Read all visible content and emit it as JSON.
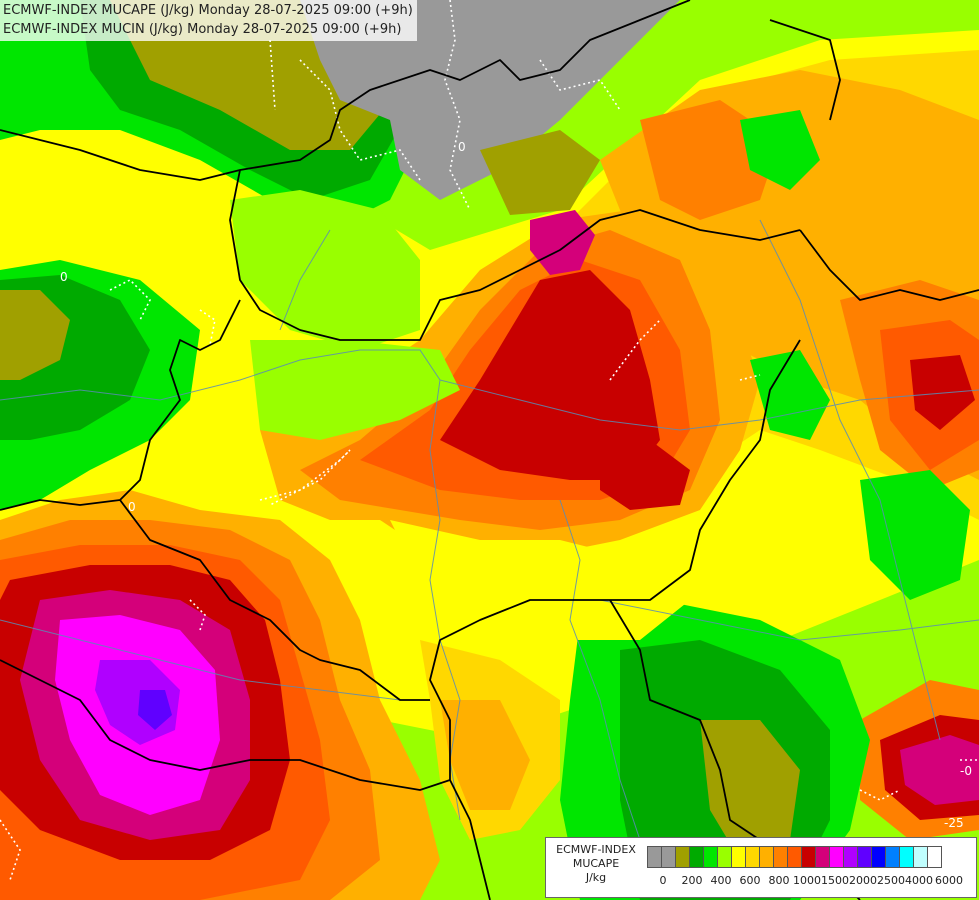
{
  "titles": {
    "line1": "ECMWF-INDEX MUCAPE (J/kg) Monday 28-07-2025 09:00 (+9h)",
    "line2": "ECMWF-INDEX MUCIN (J/kg) Monday 28-07-2025 09:00 (+9h)"
  },
  "legend": {
    "line1": "ECMWF-INDEX",
    "line2": "MUCAPE",
    "unit": "J/kg",
    "colors": [
      "#999999",
      "#999999",
      "#a0a000",
      "#00aa00",
      "#00e600",
      "#99ff00",
      "#ffff00",
      "#ffd800",
      "#ffb000",
      "#ff8000",
      "#ff5a00",
      "#c80000",
      "#d4007a",
      "#ff00ff",
      "#b000ff",
      "#6000ff",
      "#0000ff",
      "#0080ff",
      "#00ffff",
      "#c0ffff",
      "#ffffff"
    ],
    "ticks": [
      "0",
      "200",
      "400",
      "600",
      "800",
      "1000",
      "1500",
      "2000",
      "2500",
      "4000",
      "6000"
    ]
  },
  "contour_labels": [
    "0",
    "0",
    "-0",
    "-25",
    "0"
  ],
  "colors": {
    "light_green": "#99ff00",
    "green": "#00e600",
    "dark_green": "#00aa00",
    "olive": "#a0a000",
    "grey": "#999999",
    "yellow": "#ffff00",
    "gold": "#ffd800",
    "orange": "#ffb000",
    "dark_orange": "#ff8000",
    "red_orange": "#ff5a00",
    "dark_red": "#c80000",
    "magenta_dark": "#d4007a",
    "magenta": "#ff00ff",
    "purple": "#b000ff",
    "violet": "#6000ff"
  }
}
